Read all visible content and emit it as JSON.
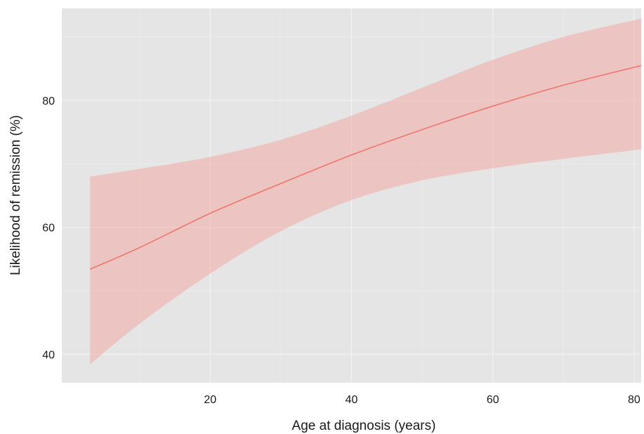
{
  "chart_data": {
    "type": "line",
    "title": "",
    "xlabel": "Age at diagnosis (years)",
    "ylabel": "Likelihood of remission (%)",
    "xlim": [
      -1,
      81
    ],
    "ylim": [
      35.5,
      94.5
    ],
    "x_ticks": [
      20,
      40,
      60,
      80
    ],
    "x_tick_labels": [
      "20",
      "40",
      "60",
      "80"
    ],
    "y_ticks": [
      40,
      60,
      80
    ],
    "y_tick_labels": [
      "40",
      "60",
      "80"
    ],
    "grid": true,
    "legend": "none",
    "series": [
      {
        "kind": "line",
        "x": [
          3,
          10,
          20,
          30,
          40,
          50,
          60,
          70,
          81
        ],
        "y": [
          53.4,
          56.8,
          62.2,
          66.9,
          71.4,
          75.4,
          79.1,
          82.4,
          85.5
        ]
      },
      {
        "kind": "band",
        "x": [
          3,
          10,
          20,
          30,
          40,
          50,
          60,
          70,
          81
        ],
        "lower": [
          38.4,
          44.8,
          52.7,
          59.4,
          64.3,
          67.4,
          69.3,
          70.8,
          72.3
        ],
        "upper": [
          68.0,
          69.2,
          71.1,
          73.8,
          77.6,
          82.0,
          86.4,
          90.0,
          92.9
        ]
      }
    ],
    "colors": {
      "line": "#f07068",
      "band": "#f4a39e",
      "panel": "#e5e5e5",
      "grid_major": "#f2f2f2",
      "grid_minor": "#ececec"
    }
  }
}
